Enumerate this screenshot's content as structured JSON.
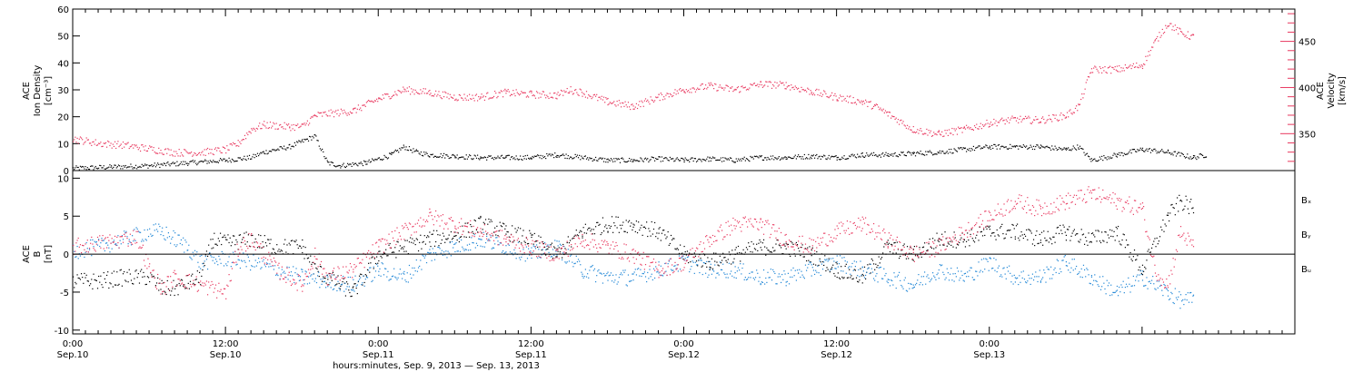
{
  "chart_data": [
    {
      "type": "scatter",
      "panel": "top",
      "ylabel_left": [
        "ACE",
        "Ion Density",
        "[cm⁻³]"
      ],
      "ylabel_right": [
        "ACE",
        "Velocity",
        "[km/s]"
      ],
      "ylim_left": [
        0,
        60
      ],
      "ylim_right": [
        310,
        485
      ],
      "yticks_left": [
        "0",
        "10",
        "20",
        "30",
        "40",
        "50",
        "60"
      ],
      "yticks_right": [
        "350",
        "400",
        "450"
      ],
      "series": [
        {
          "axis": "left",
          "color": "#000000",
          "points": [
            [
              0,
              1
            ],
            [
              3,
              1.5
            ],
            [
              6,
              2
            ],
            [
              9,
              3
            ],
            [
              12,
              4
            ],
            [
              14,
              5
            ],
            [
              15,
              7
            ],
            [
              16,
              8
            ],
            [
              17,
              9
            ],
            [
              18,
              11
            ],
            [
              19,
              13
            ],
            [
              20,
              3
            ],
            [
              21,
              2
            ],
            [
              23,
              3
            ],
            [
              25,
              6
            ],
            [
              26,
              9
            ],
            [
              27,
              7
            ],
            [
              28,
              6
            ],
            [
              30,
              5.5
            ],
            [
              32,
              5
            ],
            [
              34,
              5
            ],
            [
              36,
              5
            ],
            [
              38,
              6
            ],
            [
              40,
              5
            ],
            [
              42,
              4
            ],
            [
              44,
              4
            ],
            [
              46,
              4.5
            ],
            [
              48,
              4
            ],
            [
              50,
              4.5
            ],
            [
              52,
              4
            ],
            [
              54,
              5
            ],
            [
              56,
              5
            ],
            [
              58,
              5.5
            ],
            [
              60,
              5
            ],
            [
              62,
              6
            ],
            [
              64,
              6
            ],
            [
              66,
              6.5
            ],
            [
              68,
              7
            ],
            [
              70,
              8
            ],
            [
              72,
              9
            ],
            [
              74,
              9
            ],
            [
              76,
              9
            ],
            [
              78,
              8
            ],
            [
              79,
              9
            ],
            [
              80,
              4
            ],
            [
              82,
              6
            ],
            [
              84,
              8
            ],
            [
              86,
              7
            ],
            [
              88,
              5
            ],
            [
              89,
              6
            ]
          ]
        },
        {
          "axis": "right",
          "color": "#e8385f",
          "points": [
            [
              0,
              345
            ],
            [
              2,
              340
            ],
            [
              4,
              338
            ],
            [
              6,
              334
            ],
            [
              8,
              330
            ],
            [
              10,
              330
            ],
            [
              12,
              333
            ],
            [
              13,
              340
            ],
            [
              14,
              355
            ],
            [
              15,
              360
            ],
            [
              17,
              358
            ],
            [
              18,
              358
            ],
            [
              19,
              370
            ],
            [
              20,
              372
            ],
            [
              22,
              375
            ],
            [
              24,
              388
            ],
            [
              26,
              398
            ],
            [
              28,
              395
            ],
            [
              30,
              390
            ],
            [
              32,
              390
            ],
            [
              34,
              395
            ],
            [
              36,
              393
            ],
            [
              38,
              392
            ],
            [
              39,
              398
            ],
            [
              40,
              395
            ],
            [
              42,
              385
            ],
            [
              44,
              380
            ],
            [
              46,
              390
            ],
            [
              48,
              398
            ],
            [
              50,
              402
            ],
            [
              52,
              398
            ],
            [
              54,
              404
            ],
            [
              56,
              403
            ],
            [
              58,
              396
            ],
            [
              60,
              390
            ],
            [
              62,
              385
            ],
            [
              63,
              380
            ],
            [
              64,
              372
            ],
            [
              66,
              355
            ],
            [
              68,
              350
            ],
            [
              70,
              355
            ],
            [
              72,
              362
            ],
            [
              74,
              366
            ],
            [
              76,
              365
            ],
            [
              78,
              370
            ],
            [
              79,
              380
            ],
            [
              80,
              420
            ],
            [
              82,
              420
            ],
            [
              84,
              425
            ],
            [
              85,
              450
            ],
            [
              86,
              470
            ],
            [
              87,
              460
            ],
            [
              88,
              455
            ]
          ]
        }
      ]
    },
    {
      "type": "scatter",
      "panel": "bottom",
      "ylabel_left": [
        "ACE",
        "B",
        "[nT]"
      ],
      "ylim": [
        -10.5,
        11
      ],
      "yticks": [
        "-10",
        "-5",
        "0",
        "5",
        "10"
      ],
      "zero_line": true,
      "legend": [
        "Bₓ",
        "Bᵧ",
        "Bᵤ"
      ],
      "series": [
        {
          "name": "Bx",
          "color": "#000000",
          "points": [
            [
              0,
              -3.5
            ],
            [
              2,
              -3.5
            ],
            [
              4,
              -3
            ],
            [
              6,
              -3
            ],
            [
              7,
              -4.5
            ],
            [
              8,
              -4.5
            ],
            [
              10,
              -3
            ],
            [
              11,
              2
            ],
            [
              12,
              1.5
            ],
            [
              14,
              2
            ],
            [
              16,
              1
            ],
            [
              18,
              1
            ],
            [
              19,
              -2
            ],
            [
              20,
              -3
            ],
            [
              21,
              -4
            ],
            [
              22,
              -5
            ],
            [
              24,
              0
            ],
            [
              26,
              1
            ],
            [
              28,
              2
            ],
            [
              30,
              2.5
            ],
            [
              32,
              4
            ],
            [
              34,
              3
            ],
            [
              36,
              2
            ],
            [
              38,
              0
            ],
            [
              40,
              3
            ],
            [
              42,
              4
            ],
            [
              44,
              4
            ],
            [
              46,
              3
            ],
            [
              48,
              0
            ],
            [
              50,
              -1
            ],
            [
              52,
              0
            ],
            [
              54,
              1
            ],
            [
              56,
              1
            ],
            [
              58,
              0
            ],
            [
              60,
              -2
            ],
            [
              62,
              -3
            ],
            [
              64,
              1
            ],
            [
              66,
              0
            ],
            [
              68,
              2
            ],
            [
              70,
              2
            ],
            [
              72,
              3
            ],
            [
              74,
              3
            ],
            [
              76,
              2
            ],
            [
              78,
              3
            ],
            [
              80,
              2
            ],
            [
              82,
              3
            ],
            [
              84,
              -2
            ],
            [
              86,
              5
            ],
            [
              87,
              7
            ],
            [
              88,
              6
            ]
          ]
        },
        {
          "name": "By",
          "color": "#1f86d6",
          "points": [
            [
              0,
              0.5
            ],
            [
              2,
              1
            ],
            [
              4,
              2
            ],
            [
              6,
              3
            ],
            [
              7,
              3
            ],
            [
              8,
              2
            ],
            [
              9,
              1
            ],
            [
              10,
              -1
            ],
            [
              12,
              -0.5
            ],
            [
              14,
              -1
            ],
            [
              16,
              -2
            ],
            [
              18,
              -3
            ],
            [
              20,
              -3.5
            ],
            [
              22,
              -4
            ],
            [
              24,
              -2
            ],
            [
              26,
              -3
            ],
            [
              28,
              0
            ],
            [
              30,
              1
            ],
            [
              32,
              2
            ],
            [
              34,
              1
            ],
            [
              36,
              0
            ],
            [
              38,
              1
            ],
            [
              40,
              -2
            ],
            [
              42,
              -3
            ],
            [
              44,
              -3
            ],
            [
              46,
              -2
            ],
            [
              48,
              -1
            ],
            [
              50,
              -2
            ],
            [
              52,
              -2
            ],
            [
              54,
              -3
            ],
            [
              56,
              -3
            ],
            [
              58,
              -2
            ],
            [
              60,
              -1
            ],
            [
              62,
              -2
            ],
            [
              64,
              -3
            ],
            [
              66,
              -4
            ],
            [
              68,
              -2
            ],
            [
              70,
              -3
            ],
            [
              72,
              -1
            ],
            [
              74,
              -3
            ],
            [
              76,
              -3
            ],
            [
              78,
              -1
            ],
            [
              80,
              -3
            ],
            [
              82,
              -5
            ],
            [
              84,
              -3
            ],
            [
              86,
              -5
            ],
            [
              87,
              -6
            ],
            [
              88,
              -6
            ]
          ]
        },
        {
          "name": "Bz",
          "color": "#e8385f",
          "points": [
            [
              0,
              1
            ],
            [
              2,
              1.5
            ],
            [
              4,
              2
            ],
            [
              5,
              2.5
            ],
            [
              6,
              -2
            ],
            [
              7,
              -4.5
            ],
            [
              8,
              -3
            ],
            [
              10,
              -4
            ],
            [
              12,
              -5
            ],
            [
              13,
              1
            ],
            [
              14,
              2
            ],
            [
              16,
              -2
            ],
            [
              18,
              -4
            ],
            [
              19,
              0
            ],
            [
              20,
              -3
            ],
            [
              22,
              -2
            ],
            [
              24,
              1
            ],
            [
              26,
              3
            ],
            [
              28,
              5
            ],
            [
              30,
              4
            ],
            [
              32,
              3
            ],
            [
              34,
              2
            ],
            [
              36,
              1
            ],
            [
              38,
              0
            ],
            [
              40,
              2
            ],
            [
              42,
              1
            ],
            [
              44,
              0
            ],
            [
              46,
              -2
            ],
            [
              48,
              -1
            ],
            [
              50,
              2
            ],
            [
              52,
              4
            ],
            [
              54,
              4
            ],
            [
              56,
              2
            ],
            [
              58,
              1
            ],
            [
              60,
              3
            ],
            [
              62,
              4
            ],
            [
              64,
              2
            ],
            [
              66,
              0
            ],
            [
              68,
              1
            ],
            [
              70,
              3
            ],
            [
              72,
              5
            ],
            [
              74,
              7
            ],
            [
              76,
              6
            ],
            [
              78,
              7
            ],
            [
              80,
              8
            ],
            [
              82,
              7
            ],
            [
              84,
              6
            ],
            [
              85,
              -2
            ],
            [
              86,
              -4
            ],
            [
              87,
              3
            ],
            [
              88,
              1
            ]
          ]
        }
      ]
    }
  ],
  "xaxis": {
    "xlim": [
      0,
      96
    ],
    "tick_times": [
      "0:00",
      "12:00",
      "0:00",
      "12:00",
      "0:00",
      "12:00",
      "0:00"
    ],
    "tick_dates": [
      "Sep.10",
      "Sep.10",
      "Sep.11",
      "Sep.11",
      "Sep.12",
      "Sep.12",
      "Sep.13"
    ],
    "title": "hours:minutes, Sep.  9, 2013 — Sep. 13, 2013"
  },
  "labels": {
    "top_left_1": "ACE",
    "top_left_2": "Ion Density",
    "top_left_3": "[cm⁻³]",
    "top_right_1": "ACE",
    "top_right_2": "Velocity",
    "top_right_3": "[km/s]",
    "bottom_left_1": "ACE",
    "bottom_left_2": "B",
    "bottom_left_3": "[nT]",
    "legend_bx": "Bₓ",
    "legend_by": "Bᵧ",
    "legend_bz": "Bᵤ"
  },
  "colors": {
    "black": "#000000",
    "red": "#e8385f",
    "blue": "#1f86d6"
  }
}
